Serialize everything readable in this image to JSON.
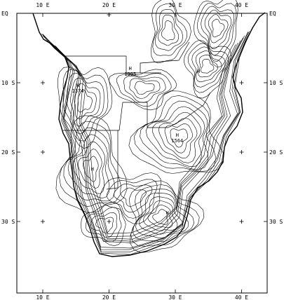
{
  "map": {
    "frame_color": "#000000",
    "contour_color": "#000000",
    "lon_ticks": [
      {
        "lon": 10,
        "label": "10 E"
      },
      {
        "lon": 20,
        "label": "20 E"
      },
      {
        "lon": 30,
        "label": "30 E"
      },
      {
        "lon": 40,
        "label": "40 E"
      }
    ],
    "lat_ticks": [
      {
        "lat": 0,
        "label": "EQ"
      },
      {
        "lat": -10,
        "label": "10 S"
      },
      {
        "lat": -20,
        "label": "20 S"
      },
      {
        "lat": -30,
        "label": "30 S"
      }
    ],
    "grid_cross_lons": [
      10,
      20,
      30,
      40
    ],
    "grid_cross_lats": [
      -10,
      -20,
      -30
    ],
    "highs": [
      {
        "label": "H",
        "value": "1374",
        "lon": 15.3,
        "lat": -10.6
      },
      {
        "label": "H",
        "value": "1395",
        "lon": 23.2,
        "lat": -8.2
      },
      {
        "label": "H",
        "value": "1564",
        "lon": 30.3,
        "lat": -17.8
      },
      {
        "label": "H",
        "value": "",
        "lon": 17.5,
        "lat": -22.7
      },
      {
        "label": "H",
        "value": "",
        "lon": 28.8,
        "lat": -29.0
      },
      {
        "label": "H",
        "value": "",
        "lon": 33.5,
        "lat": -8.6
      }
    ]
  }
}
